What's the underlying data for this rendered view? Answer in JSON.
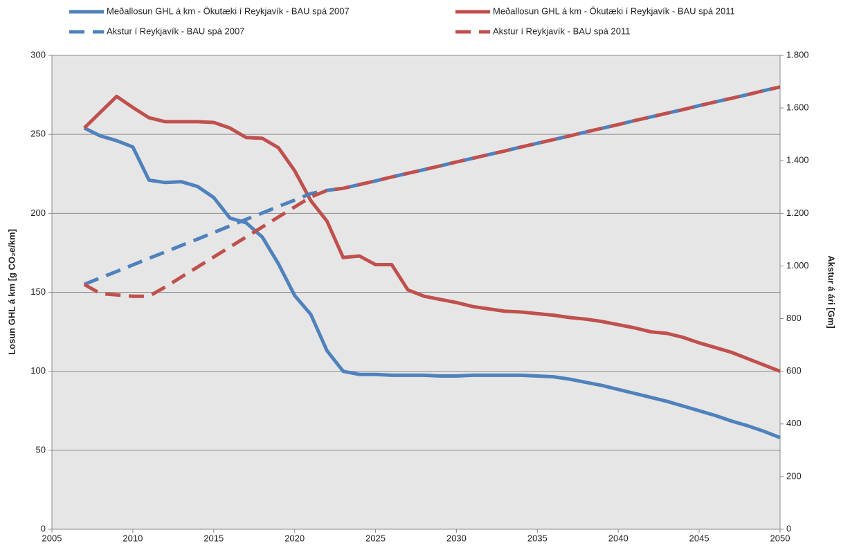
{
  "chart_data": {
    "type": "line",
    "y_label": "Losun GHL á km [g CO₂e/km]",
    "y2_label": "Akstur á ári [Gm]",
    "x": [
      2007,
      2008,
      2009,
      2010,
      2011,
      2012,
      2013,
      2014,
      2015,
      2016,
      2017,
      2018,
      2019,
      2020,
      2021,
      2022,
      2023,
      2024,
      2025,
      2026,
      2027,
      2028,
      2029,
      2030,
      2031,
      2032,
      2033,
      2034,
      2035,
      2036,
      2037,
      2038,
      2039,
      2040,
      2041,
      2042,
      2043,
      2044,
      2045,
      2046,
      2047,
      2048,
      2049,
      2050
    ],
    "xlim": [
      2005,
      2050
    ],
    "xticks": [
      2005,
      2010,
      2015,
      2020,
      2025,
      2030,
      2035,
      2040,
      2045,
      2050
    ],
    "ylim": [
      0,
      300
    ],
    "yticks": [
      0,
      50,
      100,
      150,
      200,
      250,
      300
    ],
    "y2lim": [
      0,
      1800
    ],
    "y2ticks": [
      0,
      200,
      400,
      600,
      800,
      {
        "value": 1000,
        "label": "1.000"
      },
      {
        "value": 1200,
        "label": "1.200"
      },
      {
        "value": 1400,
        "label": "1.400"
      },
      {
        "value": 1600,
        "label": "1.600"
      },
      {
        "value": 1800,
        "label": "1.800"
      }
    ],
    "grid": true,
    "legend": "top",
    "series": [
      {
        "name": "Meðallosun GHL á km - Ökutæki í Reykjavík - BAU spá 2007",
        "color": "#4f81bd",
        "line_style": "solid",
        "values": [
          254,
          249,
          246,
          242,
          221,
          219.5,
          220,
          217,
          210,
          197,
          194,
          185,
          168,
          148,
          136,
          113,
          100,
          98,
          98,
          97.5,
          97.5,
          97.5,
          97,
          97,
          97.5,
          97.5,
          97.5,
          97.5,
          97,
          96.5,
          95,
          93,
          91,
          88.5,
          86,
          83.5,
          81,
          78,
          75,
          72,
          68.5,
          65.5,
          62,
          58
        ]
      },
      {
        "name": "Meðallosun GHL á km - Ökutæki í Reykjavík - BAU spá 2011",
        "color": "#c0504d",
        "line_style": "solid",
        "values": [
          254,
          264,
          274,
          267,
          260.5,
          258,
          258,
          258,
          257.5,
          254,
          248,
          247.5,
          241.5,
          227,
          208,
          195,
          172,
          173,
          167.5,
          167.5,
          151.5,
          147.5,
          145.5,
          143.5,
          141,
          139.5,
          138,
          137.5,
          136.5,
          135.5,
          134,
          133,
          131.5,
          129.5,
          127.5,
          125,
          124,
          121.5,
          118,
          115,
          112,
          108,
          104,
          100
        ]
      },
      {
        "name": "Akstur í Reykjavík - BAU spá 2007",
        "color": "#4f81bd",
        "line_style": "dashed",
        "axis": "y2",
        "values": [
          930,
          955,
          979,
          1004,
          1029,
          1053,
          1078,
          1102,
          1127,
          1152,
          1177,
          1201,
          1226,
          1250,
          1275,
          1287,
          1295,
          1309,
          1323,
          1338,
          1352,
          1366,
          1380,
          1395,
          1409,
          1423,
          1437,
          1452,
          1466,
          1480,
          1494,
          1509,
          1523,
          1537,
          1552,
          1566,
          1580,
          1594,
          1609,
          1623,
          1637,
          1651,
          1666,
          1680
        ]
      },
      {
        "name": "Akstur í Reykjavík - BAU spá 2011",
        "color": "#c0504d",
        "line_style": "dashed",
        "axis": "y2",
        "values": [
          930,
          895,
          890,
          885,
          885,
          920,
          958,
          996,
          1034,
          1072,
          1110,
          1148,
          1186,
          1224,
          1262,
          1287,
          1295,
          1309,
          1323,
          1338,
          1352,
          1366,
          1380,
          1395,
          1409,
          1423,
          1437,
          1452,
          1466,
          1480,
          1494,
          1509,
          1523,
          1537,
          1552,
          1566,
          1580,
          1594,
          1609,
          1623,
          1637,
          1651,
          1666,
          1680
        ]
      }
    ]
  }
}
